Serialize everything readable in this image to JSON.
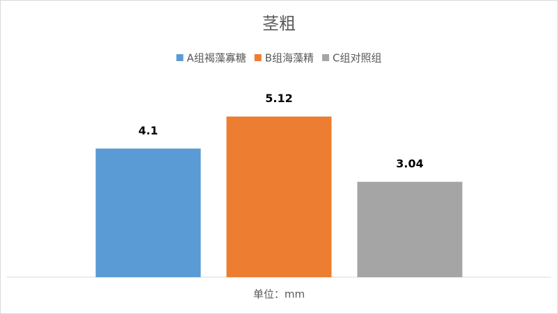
{
  "chart_data": {
    "type": "bar",
    "title": "茎粗",
    "x_label": "单位：mm",
    "categories": [
      null
    ],
    "series": [
      {
        "name": "A组褐藻寡糖",
        "color": "#5b9bd5",
        "values": [
          4.1
        ]
      },
      {
        "name": "B组海藻精",
        "color": "#ed7d31",
        "values": [
          5.12
        ]
      },
      {
        "name": "C组对照组",
        "color": "#a5a5a5",
        "values": [
          3.04
        ]
      }
    ],
    "ylim": [
      0,
      6
    ],
    "legend": "top"
  }
}
